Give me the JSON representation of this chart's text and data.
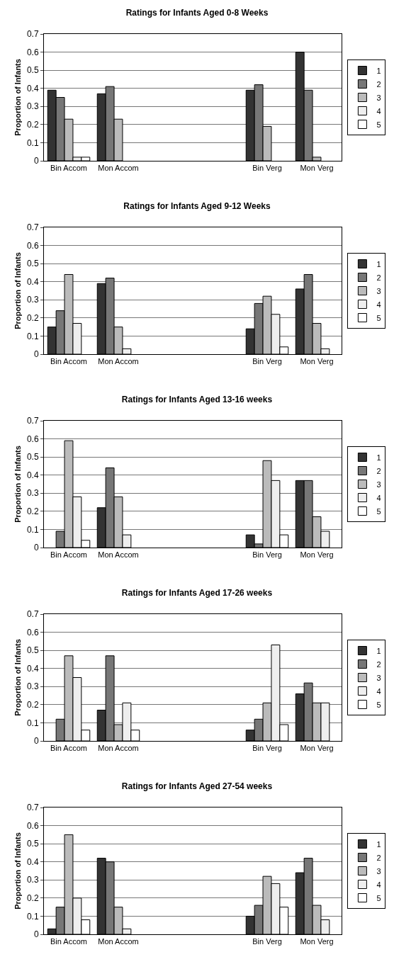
{
  "chart_data": [
    {
      "type": "bar",
      "title": "Ratings for Infants Aged 0-8 Weeks",
      "ylabel": "Proportion of Infants",
      "categories": [
        "Bin Accom",
        "Mon Accom",
        null,
        null,
        "Bin Verg",
        "Mon Verg"
      ],
      "ylim": [
        0,
        0.7
      ],
      "yticks": [
        0,
        0.1,
        0.2,
        0.3,
        0.4,
        0.5,
        0.6,
        0.7
      ],
      "grid": "y",
      "legend": "right",
      "series": [
        {
          "name": "1",
          "color": "#333333",
          "values": [
            0.39,
            0.37,
            null,
            null,
            0.39,
            0.6
          ]
        },
        {
          "name": "2",
          "color": "#777777",
          "values": [
            0.35,
            0.41,
            null,
            null,
            0.42,
            0.39
          ]
        },
        {
          "name": "3",
          "color": "#bbbbbb",
          "values": [
            0.23,
            0.23,
            null,
            null,
            0.19,
            0.02
          ]
        },
        {
          "name": "4",
          "color": "#eeeeee",
          "values": [
            0.02,
            null,
            null,
            null,
            null,
            null
          ]
        },
        {
          "name": "5",
          "color": "#ffffff",
          "values": [
            0.02,
            null,
            null,
            null,
            null,
            null
          ]
        }
      ]
    },
    {
      "type": "bar",
      "title": "Ratings for Infants Aged 9-12 Weeks",
      "ylabel": "Proportion of Infants",
      "categories": [
        "Bin Accom",
        "Mon Accom",
        null,
        null,
        "Bin Verg",
        "Mon Verg"
      ],
      "ylim": [
        0,
        0.7
      ],
      "yticks": [
        0,
        0.1,
        0.2,
        0.3,
        0.4,
        0.5,
        0.6,
        0.7
      ],
      "grid": "y",
      "legend": "right",
      "series": [
        {
          "name": "1",
          "color": "#333333",
          "values": [
            0.15,
            0.39,
            null,
            null,
            0.14,
            0.36
          ]
        },
        {
          "name": "2",
          "color": "#777777",
          "values": [
            0.24,
            0.42,
            null,
            null,
            0.28,
            0.44
          ]
        },
        {
          "name": "3",
          "color": "#bbbbbb",
          "values": [
            0.44,
            0.15,
            null,
            null,
            0.32,
            0.17
          ]
        },
        {
          "name": "4",
          "color": "#eeeeee",
          "values": [
            0.17,
            0.03,
            null,
            null,
            0.22,
            0.03
          ]
        },
        {
          "name": "5",
          "color": "#ffffff",
          "values": [
            null,
            null,
            null,
            null,
            0.04,
            null
          ]
        }
      ]
    },
    {
      "type": "bar",
      "title": "Ratings for Infants Aged 13-16 weeks",
      "ylabel": "Proportion of Infants",
      "categories": [
        "Bin Accom",
        "Mon Accom",
        null,
        null,
        "Bin Verg",
        "Mon Verg"
      ],
      "ylim": [
        0,
        0.7
      ],
      "yticks": [
        0,
        0.1,
        0.2,
        0.3,
        0.4,
        0.5,
        0.6,
        0.7
      ],
      "grid": "y",
      "legend": "right",
      "series": [
        {
          "name": "1",
          "color": "#333333",
          "values": [
            null,
            0.22,
            null,
            null,
            0.07,
            0.37
          ]
        },
        {
          "name": "2",
          "color": "#777777",
          "values": [
            0.09,
            0.44,
            null,
            null,
            0.02,
            0.37
          ]
        },
        {
          "name": "3",
          "color": "#bbbbbb",
          "values": [
            0.59,
            0.28,
            null,
            null,
            0.48,
            0.17
          ]
        },
        {
          "name": "4",
          "color": "#eeeeee",
          "values": [
            0.28,
            0.07,
            null,
            null,
            0.37,
            0.09
          ]
        },
        {
          "name": "5",
          "color": "#ffffff",
          "values": [
            0.04,
            null,
            null,
            null,
            0.07,
            null
          ]
        }
      ]
    },
    {
      "type": "bar",
      "title": "Ratings for Infants Aged 17-26 weeks",
      "ylabel": "Proportion of Infants",
      "categories": [
        "Bin Accom",
        "Mon Accom",
        null,
        null,
        "Bin Verg",
        "Mon Verg"
      ],
      "ylim": [
        0,
        0.7
      ],
      "yticks": [
        0,
        0.1,
        0.2,
        0.3,
        0.4,
        0.5,
        0.6,
        0.7
      ],
      "grid": "y",
      "legend": "right",
      "series": [
        {
          "name": "1",
          "color": "#333333",
          "values": [
            null,
            0.17,
            null,
            null,
            0.06,
            0.26
          ]
        },
        {
          "name": "2",
          "color": "#777777",
          "values": [
            0.12,
            0.47,
            null,
            null,
            0.12,
            0.32
          ]
        },
        {
          "name": "3",
          "color": "#bbbbbb",
          "values": [
            0.47,
            0.09,
            null,
            null,
            0.21,
            0.21
          ]
        },
        {
          "name": "4",
          "color": "#eeeeee",
          "values": [
            0.35,
            0.21,
            null,
            null,
            0.53,
            0.21
          ]
        },
        {
          "name": "5",
          "color": "#ffffff",
          "values": [
            0.06,
            0.06,
            null,
            null,
            0.09,
            null
          ]
        }
      ]
    },
    {
      "type": "bar",
      "title": "Ratings for Infants Aged 27-54 weeks",
      "ylabel": "Proportion of Infants",
      "categories": [
        "Bin Accom",
        "Mon Accom",
        null,
        null,
        "Bin Verg",
        "Mon Verg"
      ],
      "ylim": [
        0,
        0.7
      ],
      "yticks": [
        0,
        0.1,
        0.2,
        0.3,
        0.4,
        0.5,
        0.6,
        0.7
      ],
      "grid": "y",
      "legend": "right",
      "series": [
        {
          "name": "1",
          "color": "#333333",
          "values": [
            0.03,
            0.42,
            null,
            null,
            0.1,
            0.34
          ]
        },
        {
          "name": "2",
          "color": "#777777",
          "values": [
            0.15,
            0.4,
            null,
            null,
            0.16,
            0.42
          ]
        },
        {
          "name": "3",
          "color": "#bbbbbb",
          "values": [
            0.55,
            0.15,
            null,
            null,
            0.32,
            0.16
          ]
        },
        {
          "name": "4",
          "color": "#eeeeee",
          "values": [
            0.2,
            0.03,
            null,
            null,
            0.28,
            0.08
          ]
        },
        {
          "name": "5",
          "color": "#ffffff",
          "values": [
            0.08,
            null,
            null,
            null,
            0.15,
            null
          ]
        }
      ]
    }
  ]
}
